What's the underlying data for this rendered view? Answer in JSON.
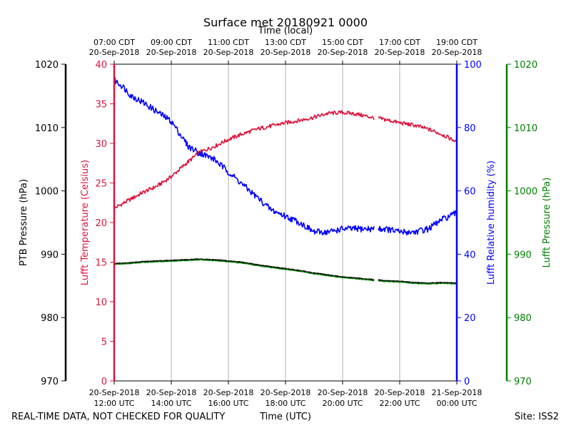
{
  "chart_data": {
    "type": "line",
    "title": "Surface met 20180921 0000",
    "x_axis_bottom": {
      "label": "Time (UTC)",
      "range_hours_utc": [
        12,
        24
      ],
      "ticks": [
        {
          "hour": 12,
          "line1": "20-Sep-2018",
          "line2": "12:00 UTC"
        },
        {
          "hour": 14,
          "line1": "20-Sep-2018",
          "line2": "14:00 UTC"
        },
        {
          "hour": 16,
          "line1": "20-Sep-2018",
          "line2": "16:00 UTC"
        },
        {
          "hour": 18,
          "line1": "20-Sep-2018",
          "line2": "18:00 UTC"
        },
        {
          "hour": 20,
          "line1": "20-Sep-2018",
          "line2": "20:00 UTC"
        },
        {
          "hour": 22,
          "line1": "20-Sep-2018",
          "line2": "22:00 UTC"
        },
        {
          "hour": 24,
          "line1": "21-Sep-2018",
          "line2": "00:00 UTC"
        }
      ]
    },
    "x_axis_top": {
      "label": "Time (local)",
      "ticks": [
        {
          "hour": 12,
          "line1": "07:00 CDT",
          "line2": "20-Sep-2018"
        },
        {
          "hour": 14,
          "line1": "09:00 CDT",
          "line2": "20-Sep-2018"
        },
        {
          "hour": 16,
          "line1": "11:00 CDT",
          "line2": "20-Sep-2018"
        },
        {
          "hour": 18,
          "line1": "13:00 CDT",
          "line2": "20-Sep-2018"
        },
        {
          "hour": 20,
          "line1": "15:00 CDT",
          "line2": "20-Sep-2018"
        },
        {
          "hour": 22,
          "line1": "17:00 CDT",
          "line2": "20-Sep-2018"
        },
        {
          "hour": 24,
          "line1": "19:00 CDT",
          "line2": "20-Sep-2018"
        }
      ]
    },
    "axes": [
      {
        "id": "ptb",
        "label": "PTB Pressure (hPa)",
        "color": "#000000",
        "ylim": [
          970,
          1020
        ],
        "ticks": [
          970,
          980,
          990,
          1000,
          1010,
          1020
        ]
      },
      {
        "id": "temp",
        "label": "Lufft Temperature (Celsius)",
        "color": "#dc143c",
        "ylim": [
          0,
          40
        ],
        "ticks": [
          0,
          5,
          10,
          15,
          20,
          25,
          30,
          35,
          40
        ]
      },
      {
        "id": "rh",
        "label": "Lufft Relative humidity (%)",
        "color": "#0000ff",
        "ylim": [
          0,
          100
        ],
        "ticks": [
          0,
          20,
          40,
          60,
          80,
          100
        ]
      },
      {
        "id": "lp",
        "label": "Lufft Pressure (hPa)",
        "color": "#008000",
        "ylim": [
          970,
          1020
        ],
        "ticks": [
          970,
          980,
          990,
          1000,
          1010,
          1020
        ]
      }
    ],
    "series": [
      {
        "name": "Lufft Temperature",
        "axis": "temp",
        "color": "#dc143c",
        "gap": [
          21.1,
          21.25
        ],
        "x": [
          12.0,
          12.5,
          13.0,
          13.5,
          14.0,
          14.5,
          15.0,
          15.5,
          16.0,
          16.5,
          17.0,
          17.5,
          18.0,
          18.5,
          19.0,
          19.5,
          20.0,
          20.5,
          21.0,
          21.1,
          21.25,
          21.5,
          22.0,
          22.5,
          23.0,
          23.5,
          24.0
        ],
        "values": [
          21.8,
          22.8,
          23.8,
          24.6,
          25.8,
          27.4,
          28.9,
          29.6,
          30.5,
          31.2,
          31.8,
          32.2,
          32.6,
          32.9,
          33.3,
          33.8,
          33.9,
          33.7,
          33.3,
          33.2,
          33.2,
          33.0,
          32.6,
          32.3,
          31.8,
          31.1,
          30.2
        ]
      },
      {
        "name": "Lufft Relative humidity",
        "axis": "rh",
        "color": "#0000ff",
        "gap": [
          21.1,
          21.25
        ],
        "x": [
          12.0,
          12.3,
          12.6,
          13.0,
          13.5,
          14.0,
          14.3,
          14.6,
          15.0,
          15.5,
          16.0,
          16.5,
          17.0,
          17.5,
          18.0,
          18.5,
          19.0,
          19.5,
          20.0,
          20.5,
          21.0,
          21.1,
          21.25,
          21.5,
          22.0,
          22.5,
          23.0,
          23.5,
          24.0
        ],
        "values": [
          95,
          93,
          90,
          88,
          85,
          82,
          78,
          74,
          72,
          70,
          66,
          62,
          58,
          54,
          52,
          50,
          47,
          47,
          48,
          48,
          48,
          48,
          48,
          48,
          47,
          47,
          48,
          51,
          53
        ]
      },
      {
        "name": "PTB Pressure",
        "axis": "ptb",
        "color": "#000000",
        "gap": [
          21.1,
          21.25
        ],
        "x": [
          12.0,
          12.5,
          13.0,
          13.5,
          14.0,
          14.5,
          15.0,
          15.5,
          16.0,
          16.5,
          17.0,
          17.5,
          18.0,
          18.5,
          19.0,
          19.5,
          20.0,
          20.5,
          21.0,
          21.1,
          21.25,
          21.5,
          22.0,
          22.5,
          23.0,
          23.5,
          24.0
        ],
        "values": [
          988.5,
          988.6,
          988.8,
          988.9,
          989.0,
          989.1,
          989.2,
          989.1,
          988.9,
          988.7,
          988.3,
          988.0,
          987.7,
          987.4,
          987.0,
          986.7,
          986.4,
          986.2,
          986.0,
          985.9,
          985.9,
          985.8,
          985.7,
          985.5,
          985.4,
          985.5,
          985.4
        ]
      },
      {
        "name": "Lufft Pressure",
        "axis": "lp",
        "color": "#008000",
        "gap": [
          21.1,
          21.25
        ],
        "x": [
          12.0,
          12.5,
          13.0,
          13.5,
          14.0,
          14.5,
          15.0,
          15.5,
          16.0,
          16.5,
          17.0,
          17.5,
          18.0,
          18.5,
          19.0,
          19.5,
          20.0,
          20.5,
          21.0,
          21.1,
          21.25,
          21.5,
          22.0,
          22.5,
          23.0,
          23.5,
          24.0
        ],
        "values": [
          988.4,
          988.5,
          988.7,
          988.8,
          988.9,
          989.0,
          989.1,
          989.0,
          988.8,
          988.6,
          988.2,
          987.9,
          987.6,
          987.3,
          986.9,
          986.6,
          986.3,
          986.1,
          985.9,
          985.8,
          985.8,
          985.7,
          985.6,
          985.4,
          985.3,
          985.4,
          985.3
        ]
      }
    ],
    "grid": "vertical"
  },
  "footer": {
    "left": "REAL-TIME DATA, NOT CHECKED FOR QUALITY",
    "right": "Site: ISS2"
  }
}
